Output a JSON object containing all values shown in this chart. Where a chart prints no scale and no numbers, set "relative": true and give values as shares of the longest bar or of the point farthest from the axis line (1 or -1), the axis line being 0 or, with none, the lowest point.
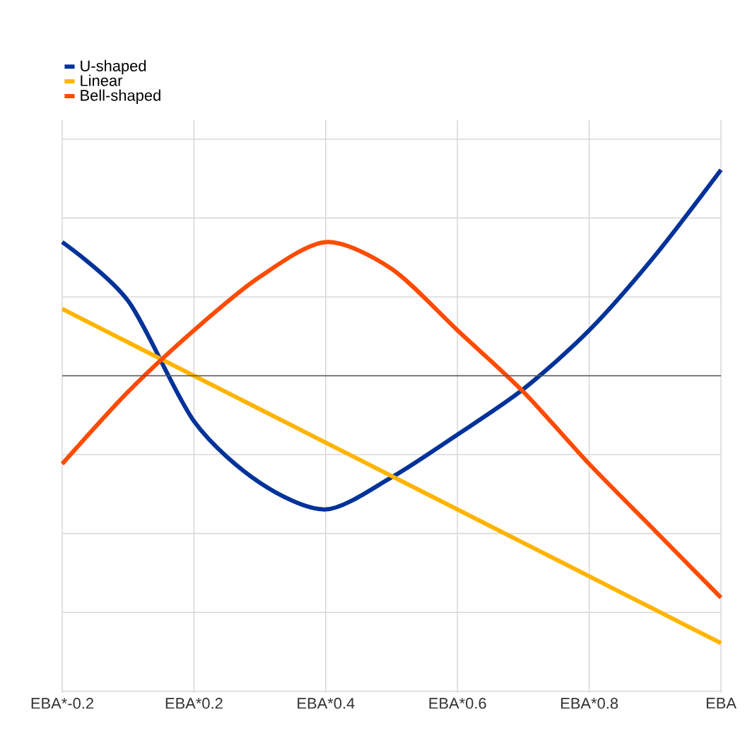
{
  "chart_data": {
    "type": "line",
    "relative": true,
    "categories": [
      "EBA*-0.2",
      null,
      "EBA*0.2",
      null,
      "EBA*0.4",
      null,
      "EBA*0.6",
      null,
      "EBA*0.8",
      null,
      "EBA"
    ],
    "series": [
      {
        "name": "U-shaped",
        "color": "#003299",
        "values": [
          0.5,
          0.28,
          -0.17,
          -0.4,
          -0.5,
          -0.38,
          -0.22,
          -0.05,
          0.17,
          0.45,
          0.77
        ]
      },
      {
        "name": "Linear",
        "color": "#ffb400",
        "values": [
          0.25,
          0.125,
          0,
          -0.125,
          -0.25,
          -0.375,
          -0.5,
          -0.625,
          -0.75,
          -0.875,
          -1.0
        ]
      },
      {
        "name": "Bell-shaped",
        "color": "#ff4b00",
        "values": [
          -0.33,
          -0.06,
          0.17,
          0.37,
          0.5,
          0.4,
          0.17,
          -0.06,
          -0.33,
          -0.58,
          -0.83
        ]
      }
    ],
    "ref_lines": [
      {
        "axis": "y",
        "value": 0,
        "color": "#555555"
      }
    ],
    "grid": true,
    "legend": "top left",
    "marker": "none",
    "line_style": "solid"
  }
}
